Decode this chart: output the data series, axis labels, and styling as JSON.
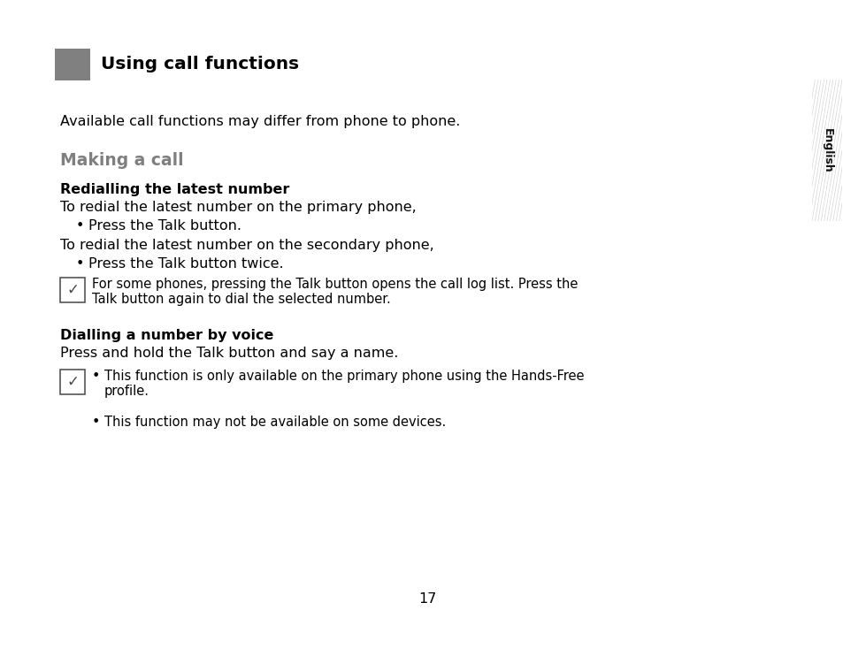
{
  "title": "Using call functions",
  "section_color": "#808080",
  "header_border_color": "#000000",
  "making_a_call_color": "#7f7f7f",
  "page_bg": "#ffffff",
  "page_number": "17",
  "english_tab_bg": "#c8c8c8",
  "english_tab_text": "English",
  "intro_text": "Available call functions may differ from phone to phone.",
  "section1_title": "Making a call",
  "subsection1_title": "Redialling the latest number",
  "redial_text1": "To redial the latest number on the primary phone,",
  "bullet1": "Press the Talk button.",
  "redial_text2": "To redial the latest number on the secondary phone,",
  "bullet2": "Press the Talk button twice.",
  "note1_line1": "For some phones, pressing the Talk button opens the call log list. Press the",
  "note1_line2": "Talk button again to dial the selected number.",
  "subsection2_title": "Dialling a number by voice",
  "voice_text": "Press and hold the Talk button and say a name.",
  "note2_bullet1_line1": "This function is only available on the primary phone using the Hands-Free",
  "note2_bullet1_line2": "profile.",
  "note2_bullet2": "This function may not be available on some devices.",
  "font_size_body": 11.5,
  "font_size_section": 13.5,
  "font_size_subsection": 11.5,
  "font_size_header": 14.5,
  "font_size_small": 10.5
}
